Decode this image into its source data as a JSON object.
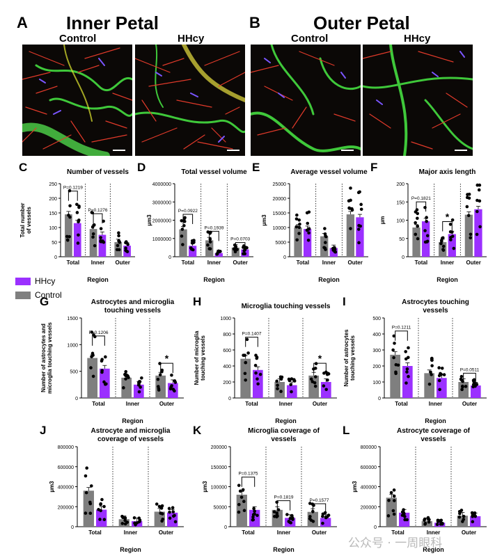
{
  "panels": {
    "A": {
      "letter": "A",
      "title": "Inner Petal",
      "control": "Control",
      "hhcy": "HHcy"
    },
    "B": {
      "letter": "B",
      "title": "Outer Petal",
      "control": "Control",
      "hhcy": "HHcy"
    }
  },
  "legend": {
    "hhcy": "HHcy",
    "control": "Control"
  },
  "colors": {
    "control": "#7f7f7f",
    "hhcy": "#9b30ff",
    "point": "#000000"
  },
  "watermark": "公众号 · 一周眼科",
  "chart_data": [
    {
      "id": "C",
      "letter": "C",
      "type": "bar",
      "title": "Number of vessels",
      "ylabel": "Total number of vessels",
      "xlabel": "Region",
      "categories": [
        "Total",
        "Inner",
        "Outer"
      ],
      "ylim": [
        0,
        250
      ],
      "yticks": [
        0,
        50,
        100,
        150,
        200,
        250
      ],
      "ytick_labels": [
        "0",
        "50",
        "100",
        "150",
        "200",
        "250"
      ],
      "series": [
        {
          "name": "Control",
          "values": [
            145,
            95,
            50
          ]
        },
        {
          "name": "HHcy",
          "values": [
            115,
            75,
            38
          ]
        }
      ],
      "annotations": [
        {
          "group": "Total",
          "text": "P=0.1219"
        },
        {
          "group": "Inner",
          "text": "P=0.1276"
        }
      ]
    },
    {
      "id": "D",
      "letter": "D",
      "type": "bar",
      "title": "Total vessel volume",
      "ylabel": "µm3",
      "xlabel": "Region",
      "categories": [
        "Total",
        "Inner",
        "Outer"
      ],
      "ylim": [
        0,
        4000000
      ],
      "yticks": [
        0,
        1000000,
        2000000,
        3000000,
        4000000
      ],
      "ytick_labels": [
        "0",
        "1000000",
        "2000000",
        "3000000",
        "4000000"
      ],
      "series": [
        {
          "name": "Control",
          "values": [
            1500000,
            900000,
            500000
          ]
        },
        {
          "name": "HHcy",
          "values": [
            600000,
            200000,
            400000
          ]
        }
      ],
      "annotations": [
        {
          "group": "Total",
          "text": "P=0.0922"
        },
        {
          "group": "Inner",
          "text": "P=0.1939"
        },
        {
          "group": "Outer",
          "text": "P=0.0703"
        }
      ]
    },
    {
      "id": "E",
      "letter": "E",
      "type": "bar",
      "title": "Average vessel volume",
      "ylabel": "µm3",
      "xlabel": "Region",
      "categories": [
        "Total",
        "Inner",
        "Outer"
      ],
      "ylim": [
        0,
        25000
      ],
      "yticks": [
        0,
        5000,
        10000,
        15000,
        20000,
        25000
      ],
      "ytick_labels": [
        "0",
        "5000",
        "10000",
        "15000",
        "20000",
        "25000"
      ],
      "series": [
        {
          "name": "Control",
          "values": [
            10000,
            7000,
            14500
          ]
        },
        {
          "name": "HHcy",
          "values": [
            9500,
            3000,
            13500
          ]
        }
      ],
      "annotations": []
    },
    {
      "id": "F",
      "letter": "F",
      "type": "bar",
      "title": "Major axis length",
      "ylabel": "µm",
      "xlabel": "Region",
      "categories": [
        "Total",
        "Inner",
        "Outer"
      ],
      "ylim": [
        0,
        200
      ],
      "yticks": [
        0,
        50,
        100,
        150,
        200
      ],
      "ytick_labels": [
        "0",
        "50",
        "100",
        "150",
        "200"
      ],
      "series": [
        {
          "name": "Control",
          "values": [
            80,
            40,
            115
          ]
        },
        {
          "name": "HHcy",
          "values": [
            97,
            62,
            130
          ]
        }
      ],
      "annotations": [
        {
          "group": "Total",
          "text": "P=0.1821"
        },
        {
          "group": "Inner",
          "text": "*"
        }
      ]
    },
    {
      "id": "G",
      "letter": "G",
      "type": "bar",
      "title": "Astrocytes and microglia touching vessels",
      "ylabel": "Number of astrocytes and microglia touching vessels",
      "xlabel": "Region",
      "categories": [
        "Total",
        "Inner",
        "Outer"
      ],
      "ylim": [
        0,
        1500
      ],
      "yticks": [
        0,
        500,
        1000,
        1500
      ],
      "ytick_labels": [
        "0",
        "500",
        "1000",
        "1500"
      ],
      "series": [
        {
          "name": "Control",
          "values": [
            750,
            380,
            420
          ]
        },
        {
          "name": "HHcy",
          "values": [
            550,
            250,
            280
          ]
        }
      ],
      "annotations": [
        {
          "group": "Total",
          "text": "P=0.1206"
        },
        {
          "group": "Outer",
          "text": "*"
        }
      ]
    },
    {
      "id": "H",
      "letter": "H",
      "type": "bar",
      "title": "Microglia touching vessels",
      "ylabel": "Number of microglia touching vessels",
      "xlabel": "Region",
      "categories": [
        "Total",
        "Inner",
        "Outer"
      ],
      "ylim": [
        0,
        1000
      ],
      "yticks": [
        0,
        200,
        400,
        600,
        800,
        1000
      ],
      "ytick_labels": [
        "0",
        "200",
        "400",
        "600",
        "800",
        "1000"
      ],
      "series": [
        {
          "name": "Control",
          "values": [
            490,
            200,
            280
          ]
        },
        {
          "name": "HHcy",
          "values": [
            350,
            160,
            200
          ]
        }
      ],
      "annotations": [
        {
          "group": "Total",
          "text": "P=0.1407"
        },
        {
          "group": "Outer",
          "text": "*"
        }
      ]
    },
    {
      "id": "I",
      "letter": "I",
      "type": "bar",
      "title": "Astrocytes touching vessels",
      "ylabel": "Number of astrocytes touching vessels",
      "xlabel": "Region",
      "categories": [
        "Total",
        "Inner",
        "Outer"
      ],
      "ylim": [
        0,
        500
      ],
      "yticks": [
        0,
        100,
        200,
        300,
        400,
        500
      ],
      "ytick_labels": [
        "0",
        "100",
        "200",
        "300",
        "400",
        "500"
      ],
      "series": [
        {
          "name": "Control",
          "values": [
            270,
            155,
            100
          ]
        },
        {
          "name": "HHcy",
          "values": [
            200,
            125,
            78
          ]
        }
      ],
      "annotations": [
        {
          "group": "Total",
          "text": "P=0.1211"
        },
        {
          "group": "Outer",
          "text": "P=0.0511"
        }
      ]
    },
    {
      "id": "J",
      "letter": "J",
      "type": "bar",
      "title": "Astrocyte and microglia coverage of vessels",
      "ylabel": "µm3",
      "xlabel": "Region",
      "categories": [
        "Total",
        "Inner",
        "Outer"
      ],
      "ylim": [
        0,
        800000
      ],
      "yticks": [
        0,
        200000,
        400000,
        600000,
        800000
      ],
      "ytick_labels": [
        "0",
        "200000",
        "400000",
        "600000",
        "800000"
      ],
      "series": [
        {
          "name": "Control",
          "values": [
            360000,
            75000,
            150000
          ]
        },
        {
          "name": "HHcy",
          "values": [
            170000,
            55000,
            140000
          ]
        }
      ],
      "annotations": []
    },
    {
      "id": "K",
      "letter": "K",
      "type": "bar",
      "title": "Microglia coverage of vessels",
      "ylabel": "µm3",
      "xlabel": "Region",
      "categories": [
        "Total",
        "Inner",
        "Outer"
      ],
      "ylim": [
        0,
        200000
      ],
      "yticks": [
        0,
        50000,
        100000,
        150000,
        200000
      ],
      "ytick_labels": [
        "0",
        "50000",
        "100000",
        "150000",
        "200000"
      ],
      "series": [
        {
          "name": "Control",
          "values": [
            80000,
            42000,
            37000
          ]
        },
        {
          "name": "HHcy",
          "values": [
            42000,
            22000,
            22000
          ]
        }
      ],
      "annotations": [
        {
          "group": "Total",
          "text": "P=0.1375"
        },
        {
          "group": "Inner",
          "text": "P=0.1819"
        },
        {
          "group": "Outer",
          "text": "P=0.1577"
        }
      ]
    },
    {
      "id": "L",
      "letter": "L",
      "type": "bar",
      "title": "Astrocyte coverage of vessels",
      "ylabel": "µm3",
      "xlabel": "Region",
      "categories": [
        "Total",
        "Inner",
        "Outer"
      ],
      "ylim": [
        0,
        800000
      ],
      "yticks": [
        0,
        200000,
        400000,
        600000,
        800000
      ],
      "ytick_labels": [
        "0",
        "200000",
        "400000",
        "600000",
        "800000"
      ],
      "series": [
        {
          "name": "Control",
          "values": [
            290000,
            55000,
            110000
          ]
        },
        {
          "name": "HHcy",
          "values": [
            140000,
            40000,
            105000
          ]
        }
      ],
      "annotations": []
    }
  ]
}
